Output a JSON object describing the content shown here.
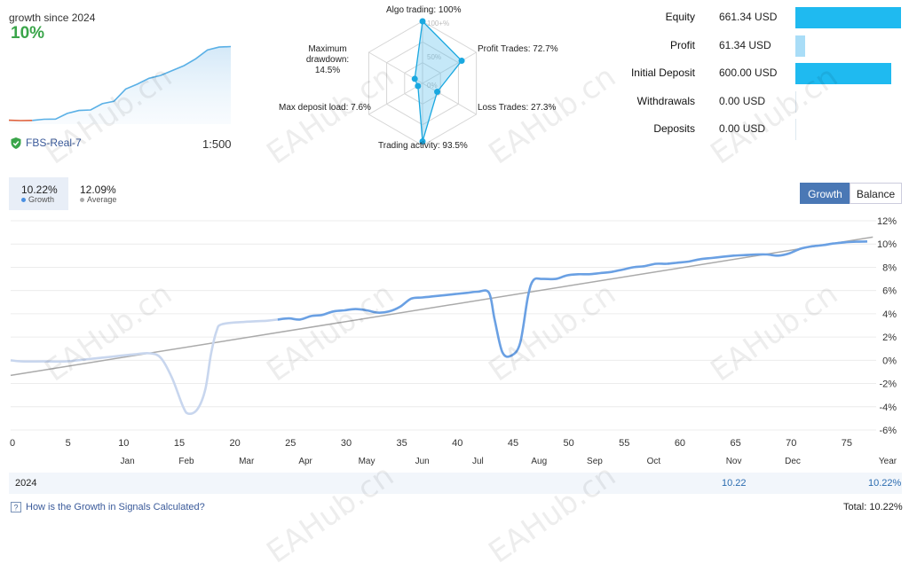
{
  "header": {
    "growth_since_label": "growth since 2024",
    "growth_value": "10%",
    "account_name": "FBS-Real-7",
    "leverage": "1:500"
  },
  "mini_chart": {
    "values": [
      4,
      3.6,
      3.8,
      5,
      5.2,
      11,
      14,
      14.5,
      21,
      23.5,
      36,
      41,
      47,
      50,
      55,
      60,
      67,
      76,
      79,
      79.5
    ]
  },
  "radar": {
    "scale_labels": [
      "100+%",
      "50%",
      "0%"
    ],
    "axes": [
      {
        "label": "Algo trading: 100%",
        "value": 100
      },
      {
        "label": "Profit Trades: 72.7%",
        "value": 72.7
      },
      {
        "label": "Loss Trades: 27.3%",
        "value": 27.3
      },
      {
        "label": "Trading activity: 93.5%",
        "value": 93.5
      },
      {
        "label_line1": "Max deposit load: 7.6%",
        "value": 7.6
      },
      {
        "label_line1": "Maximum drawdown:",
        "label_line2": "14.5%",
        "value": 14.5
      }
    ]
  },
  "stats": [
    {
      "label": "Equity",
      "value": "661.34 USD",
      "fill": 1.0
    },
    {
      "label": "Profit",
      "value": "61.34 USD",
      "fill": 0.093
    },
    {
      "label": "Initial Deposit",
      "value": "600.00 USD",
      "fill": 0.907
    },
    {
      "label": "Withdrawals",
      "value": "0.00 USD",
      "fill": 0
    },
    {
      "label": "Deposits",
      "value": "0.00 USD",
      "fill": 0
    }
  ],
  "tabs": {
    "growth_value": "10.22%",
    "growth_label": "Growth",
    "average_value": "12.09%",
    "average_label": "Average"
  },
  "buttons": {
    "growth": "Growth",
    "balance": "Balance"
  },
  "chart_data": {
    "type": "line",
    "ylim": [
      -6,
      12
    ],
    "xlim": [
      0,
      77
    ],
    "y_ticks": [
      "12%",
      "10%",
      "8%",
      "6%",
      "4%",
      "2%",
      "0%",
      "-2%",
      "-4%",
      "-6%"
    ],
    "y_tick_values": [
      12,
      10,
      8,
      6,
      4,
      2,
      0,
      -2,
      -4,
      -6
    ],
    "x_ticks": [
      "0",
      "5",
      "10",
      "15",
      "20",
      "25",
      "30",
      "35",
      "40",
      "45",
      "50",
      "55",
      "60",
      "65",
      "70",
      "75"
    ],
    "x_tick_values": [
      0,
      5,
      10,
      15,
      20,
      25,
      30,
      35,
      40,
      45,
      50,
      55,
      60,
      65,
      70,
      75
    ],
    "months": [
      "Jan",
      "Feb",
      "Mar",
      "Apr",
      "May",
      "Jun",
      "Jul",
      "Aug",
      "Sep",
      "Oct",
      "Nov",
      "Dec"
    ],
    "month_positions": [
      10.5,
      15.8,
      21.2,
      26.5,
      32,
      37,
      42,
      47.5,
      52.5,
      57.8,
      65,
      70.3
    ],
    "year_label": "Year",
    "series": [
      {
        "name": "Growth",
        "color": "#6aa0e3",
        "faded_until": 24,
        "x": [
          0,
          1,
          3,
          5,
          7,
          9,
          11,
          12.5,
          13.5,
          14.5,
          15.5,
          16,
          16.8,
          17.5,
          18,
          18.5,
          19,
          21,
          23,
          24,
          25,
          26,
          27,
          28,
          29,
          30,
          31,
          32,
          33,
          34,
          35,
          36,
          37,
          38,
          39,
          40,
          41,
          42,
          43,
          43.5,
          44.2,
          45,
          45.8,
          46.5,
          47,
          47.8,
          49,
          50,
          51,
          52,
          53,
          54,
          55,
          56,
          57,
          58,
          59,
          60,
          61,
          62,
          63,
          64,
          65,
          66,
          67,
          68,
          69,
          70,
          71,
          72,
          73,
          74,
          75,
          76,
          77
        ],
        "y": [
          0,
          -0.1,
          -0.1,
          -0.1,
          0.1,
          0.3,
          0.5,
          0.6,
          0.2,
          -1.5,
          -4,
          -4.6,
          -4.2,
          -2.5,
          0.5,
          2.5,
          3.1,
          3.3,
          3.4,
          3.5,
          3.6,
          3.5,
          3.8,
          3.9,
          4.2,
          4.3,
          4.4,
          4.3,
          4.1,
          4.2,
          4.6,
          5.3,
          5.4,
          5.5,
          5.6,
          5.7,
          5.8,
          5.9,
          5.8,
          3.5,
          0.7,
          0.4,
          1.5,
          5.5,
          6.9,
          7,
          7,
          7.3,
          7.4,
          7.4,
          7.5,
          7.6,
          7.8,
          8,
          8.1,
          8.3,
          8.3,
          8.4,
          8.5,
          8.7,
          8.8,
          8.9,
          9,
          9.05,
          9.1,
          9.1,
          9,
          9.2,
          9.6,
          9.8,
          9.9,
          10.05,
          10.15,
          10.2,
          10.22
        ]
      },
      {
        "name": "Average",
        "color": "#aaaaaa",
        "x": [
          0,
          77.5
        ],
        "y": [
          -1.3,
          10.6
        ]
      }
    ]
  },
  "year_row": {
    "year": "2024",
    "november_value": "10.22",
    "total_value": "10.22%"
  },
  "footer": {
    "help_link": "How is the Growth in Signals Calculated?",
    "total_label": "Total:",
    "total_value": "10.22%"
  },
  "watermark_text": "EAHub.cn"
}
